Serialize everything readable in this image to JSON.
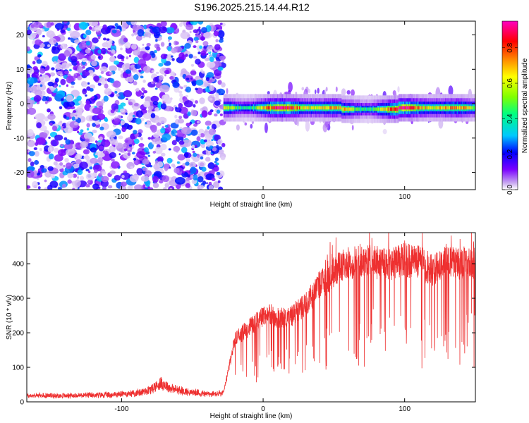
{
  "title": "S196.2025.215.14.44.R12",
  "chart_data": [
    {
      "type": "heatmap",
      "xlabel": "Height of straight line (km)",
      "ylabel": "Frequency (Hz)",
      "xlim": [
        -167,
        150
      ],
      "ylim": [
        -25,
        24
      ],
      "xticks": [
        -100,
        0,
        100
      ],
      "yticks": [
        -20,
        -10,
        0,
        10,
        20
      ],
      "colorbar": {
        "label": "Normalized spectral amplitude",
        "range": [
          0,
          0.95
        ],
        "ticks": [
          0.0,
          0.2,
          0.4,
          0.6,
          0.8
        ],
        "colors": [
          "#ffffff",
          "#c8a8f0",
          "#7a00ff",
          "#0000ff",
          "#00c8ff",
          "#00ff80",
          "#80ff00",
          "#ffff00",
          "#ff8000",
          "#ff0000",
          "#ff00c0"
        ]
      },
      "signal": {
        "x_start": -28,
        "x_end": 150,
        "frequency": -1.2,
        "peak_amplitude": 0.95
      },
      "noise_region": {
        "x_start": -167,
        "x_end": -28,
        "amplitude": 0.3
      }
    },
    {
      "type": "line",
      "xlabel": "Height of straight line (km)",
      "ylabel": "SNR (10 * v/v)",
      "xlim": [
        -167,
        150
      ],
      "ylim": [
        0,
        490
      ],
      "xticks": [
        -100,
        0,
        100
      ],
      "yticks": [
        0,
        100,
        200,
        300,
        400
      ],
      "line_color": "#ee3030",
      "series": [
        {
          "x": [
            -167,
            -140,
            -110,
            -90,
            -80,
            -72,
            -65,
            -55,
            -45,
            -35,
            -28,
            -20,
            -12,
            -5,
            0,
            5,
            10,
            20,
            25,
            30,
            35,
            40,
            45,
            50,
            60,
            70,
            80,
            90,
            100,
            110,
            120,
            130,
            140,
            150
          ],
          "y": [
            18,
            18,
            20,
            25,
            35,
            55,
            38,
            30,
            25,
            22,
            25,
            180,
            210,
            230,
            250,
            255,
            240,
            250,
            265,
            285,
            310,
            340,
            350,
            380,
            400,
            410,
            405,
            400,
            410,
            405,
            380,
            405,
            400,
            405
          ]
        }
      ]
    }
  ]
}
